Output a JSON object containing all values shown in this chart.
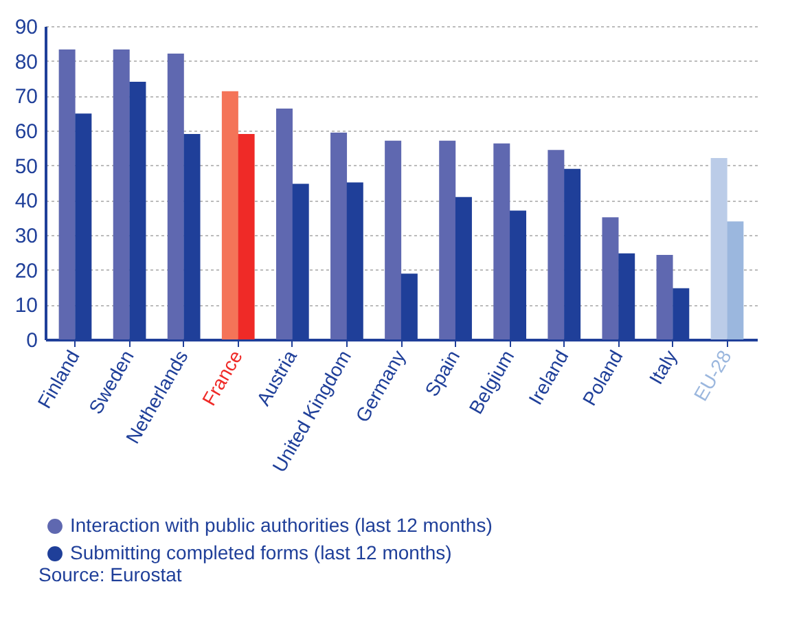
{
  "chart_data": {
    "type": "bar",
    "categories": [
      "Finland",
      "Sweden",
      "Netherlands",
      "France",
      "Austria",
      "United Kingdom",
      "Germany",
      "Spain",
      "Belgium",
      "Ireland",
      "Poland",
      "Italy",
      "EU-28"
    ],
    "series": [
      {
        "name": "Interaction with public authorities (last 12 months)",
        "color": "#5f68b0",
        "colors": [
          "#5f68b0",
          "#5f68b0",
          "#5f68b0",
          "#f47458",
          "#5f68b0",
          "#5f68b0",
          "#5f68b0",
          "#5f68b0",
          "#5f68b0",
          "#5f68b0",
          "#5f68b0",
          "#5f68b0",
          "#bbcce8"
        ],
        "values": [
          83.3,
          83.3,
          82.1,
          71.3,
          66.3,
          59.4,
          57.1,
          57.1,
          56.3,
          54.4,
          35.1,
          24.3,
          52.1
        ]
      },
      {
        "name": "Submitting completed forms (last 12 months)",
        "color": "#1f3f99",
        "colors": [
          "#1f3f99",
          "#1f3f99",
          "#1f3f99",
          "#ef2a27",
          "#1f3f99",
          "#1f3f99",
          "#1f3f99",
          "#1f3f99",
          "#1f3f99",
          "#1f3f99",
          "#1f3f99",
          "#1f3f99",
          "#9bb7de"
        ],
        "values": [
          64.9,
          74.0,
          59.0,
          59.0,
          44.7,
          45.1,
          18.9,
          40.9,
          37.0,
          49.0,
          24.7,
          14.7,
          33.9
        ]
      }
    ],
    "ylim": [
      0,
      90
    ],
    "yticks": [
      0,
      10,
      20,
      30,
      40,
      50,
      60,
      70,
      80,
      90
    ],
    "grid": "y",
    "legend": "bottom",
    "annotations": [
      "Source: Eurostat"
    ]
  }
}
